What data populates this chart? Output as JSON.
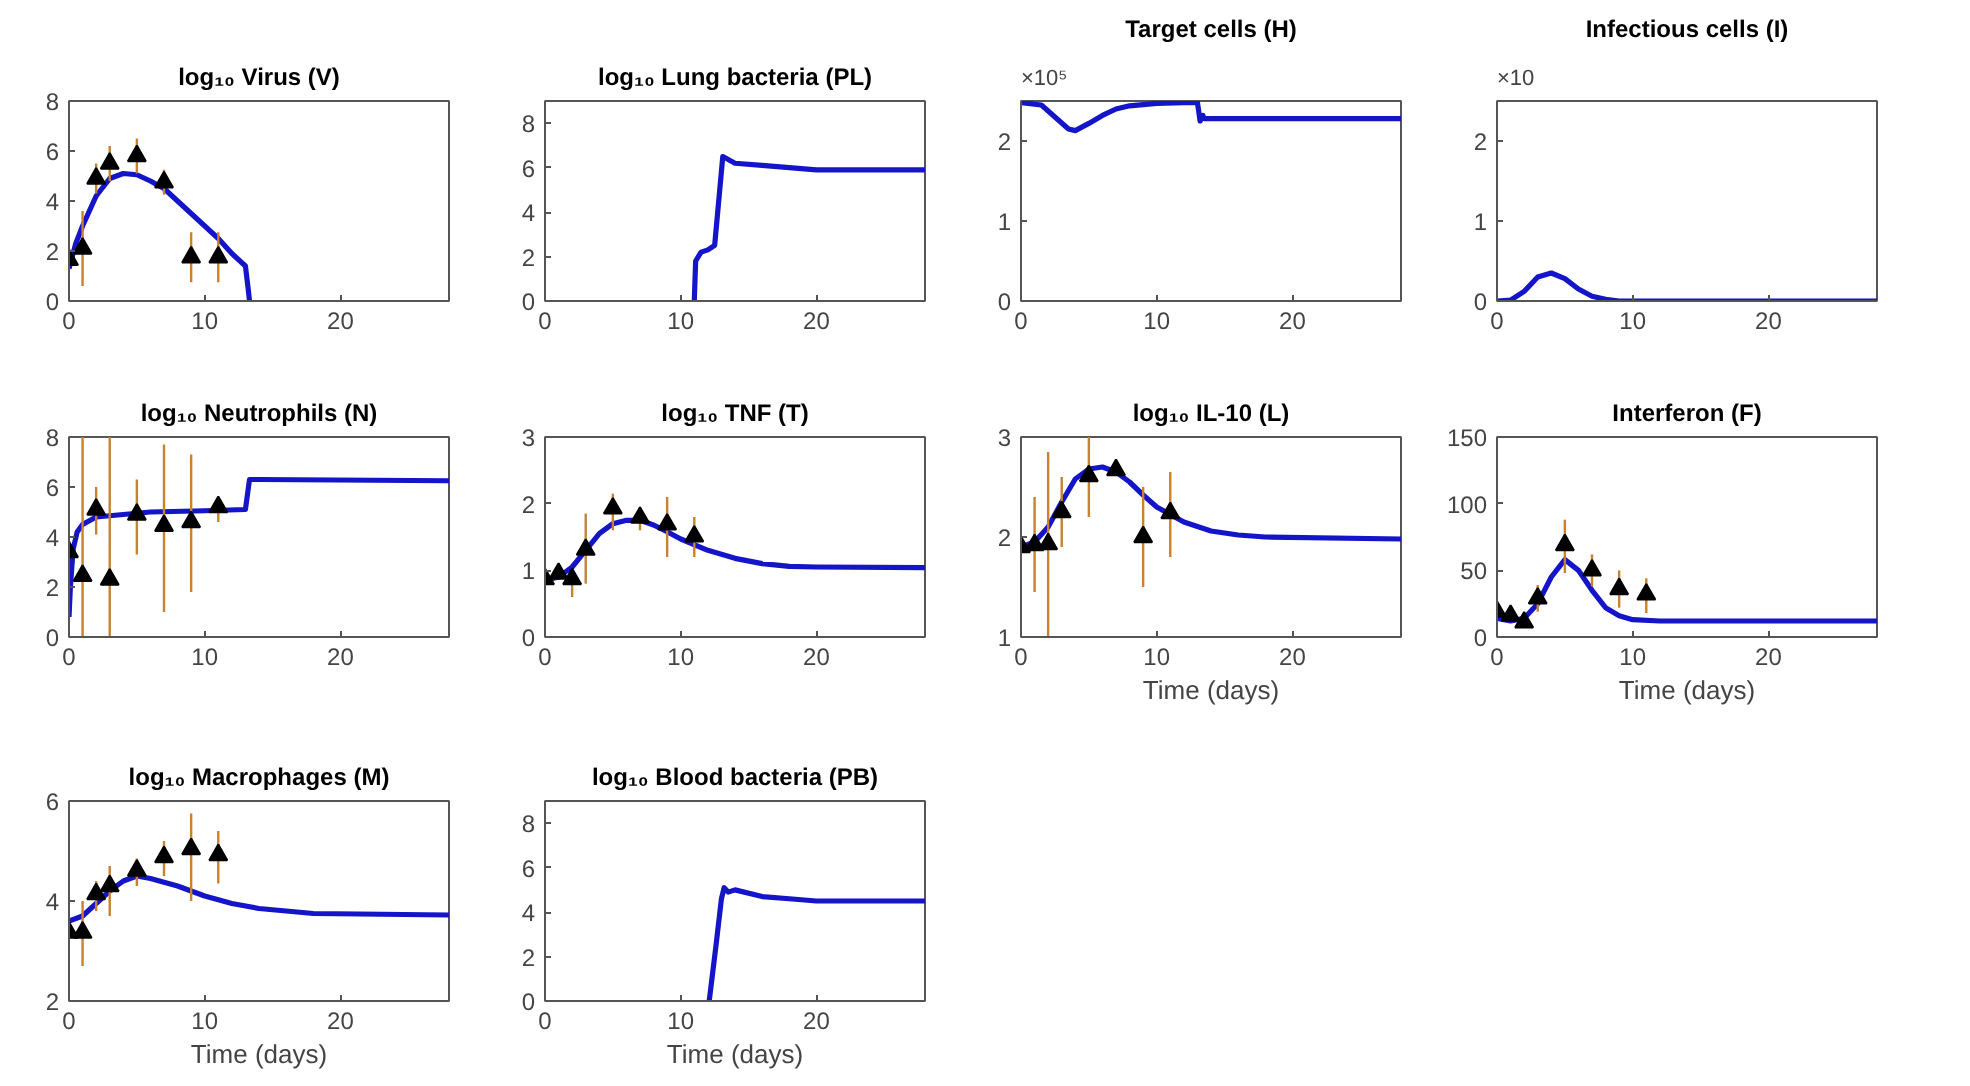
{
  "chart_data": [
    {
      "type": "line",
      "title": "log₁₀ Virus (V)",
      "xlim": [
        0,
        28
      ],
      "ylim": [
        0,
        8
      ],
      "xticks": [
        0,
        10,
        20
      ],
      "yticks": [
        0,
        2,
        4,
        6,
        8
      ],
      "grid": false,
      "series": [
        {
          "color": "#1414c8",
          "x": [
            0,
            0.5,
            1,
            2,
            3,
            4,
            5,
            6,
            7,
            8,
            9,
            10,
            11,
            12,
            13,
            13.2,
            13.3
          ],
          "values": [
            1.3,
            2.3,
            3.0,
            4.2,
            4.9,
            5.1,
            5.05,
            4.8,
            4.5,
            4.0,
            3.5,
            3.0,
            2.5,
            1.9,
            1.4,
            0.5,
            0
          ]
        },
        {
          "type": "scatter",
          "marker": "triangle",
          "color": "#000000",
          "x": [
            0,
            1,
            2,
            3,
            5,
            7,
            9,
            11
          ],
          "values": [
            1.65,
            2.1,
            4.9,
            5.5,
            5.8,
            4.75,
            1.75,
            1.75
          ],
          "errors": [
            null,
            1.5,
            0.6,
            0.7,
            0.7,
            0.5,
            1.0,
            1.0
          ]
        }
      ]
    },
    {
      "type": "line",
      "title": "log₁₀ Lung bacteria (PL)",
      "xlim": [
        0,
        28
      ],
      "ylim": [
        0,
        9
      ],
      "xticks": [
        0,
        10,
        20
      ],
      "yticks": [
        0,
        2,
        4,
        6,
        8
      ],
      "grid": false,
      "series": [
        {
          "color": "#1414c8",
          "x": [
            11,
            11.1,
            11.5,
            12,
            12.5,
            13.1,
            14,
            16,
            18,
            20,
            28
          ],
          "values": [
            0,
            1.8,
            2.2,
            2.3,
            2.5,
            6.5,
            6.2,
            6.1,
            6.0,
            5.9,
            5.9
          ]
        }
      ]
    },
    {
      "type": "line",
      "title": "Target cells (H)",
      "annotations": [
        "×10⁵"
      ],
      "xlim": [
        0,
        28
      ],
      "ylim": [
        0,
        2.5
      ],
      "xticks": [
        0,
        10,
        20
      ],
      "yticks": [
        0,
        1,
        2
      ],
      "grid": false,
      "series": [
        {
          "color": "#1414c8",
          "x": [
            0,
            1.5,
            2.5,
            3.5,
            4,
            5,
            6,
            7,
            8,
            10,
            12,
            13,
            13.2,
            13.4,
            13.5,
            28
          ],
          "values": [
            2.48,
            2.45,
            2.3,
            2.15,
            2.13,
            2.22,
            2.32,
            2.4,
            2.44,
            2.47,
            2.48,
            2.48,
            2.25,
            2.32,
            2.28,
            2.28
          ]
        }
      ]
    },
    {
      "type": "line",
      "title": "Infectious cells (I)",
      "annotations": [
        "×10"
      ],
      "xlim": [
        0,
        28
      ],
      "ylim": [
        0,
        2.5
      ],
      "xticks": [
        0,
        10,
        20
      ],
      "yticks": [
        0,
        1,
        2
      ],
      "grid": false,
      "series": [
        {
          "color": "#1414c8",
          "x": [
            0,
            1,
            2,
            3,
            4,
            5,
            6,
            7,
            8,
            9,
            28
          ],
          "values": [
            0,
            0.01,
            0.12,
            0.3,
            0.35,
            0.28,
            0.15,
            0.06,
            0.02,
            0,
            0
          ]
        }
      ]
    },
    {
      "type": "line",
      "title": "log₁₀ Neutrophils (N)",
      "xlim": [
        0,
        28
      ],
      "ylim": [
        0,
        8
      ],
      "xticks": [
        0,
        10,
        20
      ],
      "yticks": [
        0,
        2,
        4,
        6,
        8
      ],
      "grid": false,
      "series": [
        {
          "color": "#1414c8",
          "x": [
            0,
            0.1,
            0.3,
            0.6,
            1,
            2,
            4,
            6,
            10,
            13,
            13.3,
            14,
            28
          ],
          "values": [
            0.8,
            2,
            3.5,
            4.2,
            4.5,
            4.8,
            4.9,
            5.0,
            5.05,
            5.1,
            6.3,
            6.3,
            6.25
          ]
        },
        {
          "type": "scatter",
          "marker": "triangle",
          "color": "#000000",
          "x": [
            0,
            1,
            2,
            3,
            5,
            7,
            9,
            11
          ],
          "values": [
            3.4,
            2.45,
            5.1,
            2.3,
            4.9,
            4.45,
            4.6,
            5.2
          ],
          "errors": [
            null,
            [
              0,
              8
            ],
            [
              4.1,
              6.0
            ],
            [
              0,
              8
            ],
            [
              3.3,
              6.3
            ],
            [
              1.0,
              7.7
            ],
            [
              1.8,
              7.3
            ],
            [
              4.6,
              5.6
            ]
          ]
        }
      ]
    },
    {
      "type": "line",
      "title": "log₁₀ TNF (T)",
      "xlim": [
        0,
        28
      ],
      "ylim": [
        0,
        3
      ],
      "xticks": [
        0,
        10,
        20
      ],
      "yticks": [
        0,
        1,
        2,
        3
      ],
      "grid": false,
      "series": [
        {
          "color": "#1414c8",
          "x": [
            0,
            1,
            2,
            3,
            4,
            5,
            6,
            7,
            8,
            9,
            10,
            12,
            14,
            16,
            18,
            20,
            28
          ],
          "values": [
            0.85,
            0.9,
            1.05,
            1.3,
            1.55,
            1.7,
            1.75,
            1.75,
            1.68,
            1.58,
            1.47,
            1.3,
            1.18,
            1.1,
            1.06,
            1.05,
            1.04
          ]
        },
        {
          "type": "scatter",
          "marker": "triangle",
          "color": "#000000",
          "x": [
            0,
            1,
            2,
            3,
            5,
            7,
            9,
            11
          ],
          "values": [
            0.87,
            0.95,
            0.87,
            1.31,
            1.93,
            1.79,
            1.69,
            1.51
          ],
          "errors": [
            null,
            null,
            [
              0.6,
              1.0
            ],
            [
              0.8,
              1.85
            ],
            [
              1.6,
              2.15
            ],
            [
              1.6,
              1.95
            ],
            [
              1.2,
              2.1
            ],
            [
              1.2,
              1.8
            ]
          ]
        }
      ]
    },
    {
      "type": "line",
      "title": "log₁₀ IL-10 (L)",
      "xlabel": "Time (days)",
      "xlim": [
        0,
        28
      ],
      "ylim": [
        1,
        3
      ],
      "xticks": [
        0,
        10,
        20
      ],
      "yticks": [
        1,
        2,
        3
      ],
      "grid": false,
      "series": [
        {
          "color": "#1414c8",
          "x": [
            0,
            1,
            2,
            3,
            4,
            5,
            6,
            7,
            8,
            9,
            10,
            12,
            14,
            16,
            18,
            28
          ],
          "values": [
            1.9,
            1.95,
            2.1,
            2.35,
            2.58,
            2.68,
            2.7,
            2.65,
            2.55,
            2.42,
            2.3,
            2.15,
            2.06,
            2.02,
            2.0,
            1.98
          ]
        },
        {
          "type": "scatter",
          "marker": "triangle",
          "color": "#000000",
          "x": [
            0,
            1,
            2,
            3,
            5,
            7,
            9,
            11
          ],
          "values": [
            1.9,
            1.92,
            1.93,
            2.25,
            2.61,
            2.67,
            2.0,
            2.24
          ],
          "errors": [
            null,
            [
              1.45,
              2.4
            ],
            [
              1.0,
              2.85
            ],
            [
              1.9,
              2.6
            ],
            [
              2.2,
              3.0
            ],
            null,
            [
              1.5,
              2.5
            ],
            [
              1.8,
              2.65
            ]
          ]
        }
      ]
    },
    {
      "type": "line",
      "title": "Interferon (F)",
      "xlabel": "Time (days)",
      "xlim": [
        0,
        28
      ],
      "ylim": [
        0,
        150
      ],
      "xticks": [
        0,
        10,
        20
      ],
      "yticks": [
        0,
        50,
        100,
        150
      ],
      "grid": false,
      "series": [
        {
          "color": "#1414c8",
          "x": [
            0,
            1,
            2,
            3,
            4,
            5,
            6,
            7,
            8,
            9,
            10,
            12,
            28
          ],
          "values": [
            14,
            12,
            14,
            25,
            45,
            58,
            50,
            35,
            22,
            16,
            13,
            12,
            12
          ]
        },
        {
          "type": "scatter",
          "marker": "triangle",
          "color": "#000000",
          "x": [
            0,
            1,
            2,
            3,
            5,
            7,
            9,
            11
          ],
          "values": [
            19,
            16,
            11,
            29,
            69,
            50,
            36,
            32
          ],
          "errors": [
            null,
            null,
            null,
            10,
            [
              48,
              88
            ],
            [
              38,
              62
            ],
            [
              22,
              50
            ],
            [
              18,
              44
            ]
          ]
        }
      ]
    },
    {
      "type": "line",
      "title": "log₁₀ Macrophages (M)",
      "xlabel": "Time (days)",
      "xlim": [
        0,
        28
      ],
      "ylim": [
        2,
        6
      ],
      "xticks": [
        0,
        10,
        20
      ],
      "yticks": [
        2,
        4,
        6
      ],
      "grid": false,
      "series": [
        {
          "color": "#1414c8",
          "x": [
            0,
            1,
            2,
            3,
            4,
            5,
            6,
            8,
            10,
            12,
            14,
            16,
            18,
            28
          ],
          "values": [
            3.6,
            3.7,
            3.95,
            4.2,
            4.4,
            4.5,
            4.45,
            4.3,
            4.1,
            3.95,
            3.85,
            3.8,
            3.75,
            3.72
          ]
        },
        {
          "type": "scatter",
          "marker": "triangle",
          "color": "#000000",
          "x": [
            0,
            1,
            2,
            3,
            5,
            7,
            9,
            11
          ],
          "values": [
            3.37,
            3.37,
            4.14,
            4.3,
            4.61,
            4.88,
            5.04,
            4.92
          ],
          "errors": [
            null,
            [
              2.7,
              4.0
            ],
            [
              3.8,
              4.4
            ],
            [
              3.7,
              4.7
            ],
            [
              4.3,
              4.85
            ],
            [
              4.5,
              5.2
            ],
            [
              4.0,
              5.75
            ],
            [
              4.35,
              5.4
            ]
          ]
        }
      ]
    },
    {
      "type": "line",
      "title": "log₁₀ Blood bacteria (PB)",
      "xlabel": "Time (days)",
      "xlim": [
        0,
        28
      ],
      "ylim": [
        0,
        9
      ],
      "xticks": [
        0,
        10,
        20
      ],
      "yticks": [
        0,
        2,
        4,
        6,
        8
      ],
      "grid": false,
      "series": [
        {
          "color": "#1414c8",
          "x": [
            12.1,
            12.6,
            13,
            13.2,
            13.5,
            14,
            16,
            18,
            20,
            28
          ],
          "values": [
            0,
            2.5,
            4.6,
            5.1,
            4.9,
            5.0,
            4.7,
            4.6,
            4.5,
            4.5
          ]
        }
      ]
    }
  ]
}
